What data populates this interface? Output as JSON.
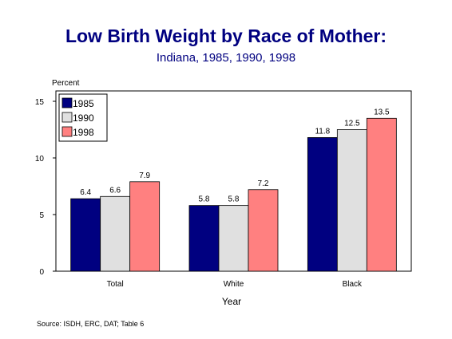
{
  "title": "Low Birth Weight by Race of Mother:",
  "subtitle": "Indiana, 1985, 1990, 1998",
  "source": "Source:  ISDH, ERC, DAT; Table 6",
  "chart_data": {
    "type": "bar",
    "title": "Low Birth Weight by Race of Mother:",
    "subtitle": "Indiana, 1985, 1990, 1998",
    "ylabel": "Percent",
    "xlabel": "Year",
    "ylim": [
      0,
      15
    ],
    "yticks": [
      0,
      5,
      10,
      15
    ],
    "categories": [
      "Total",
      "White",
      "Black"
    ],
    "series": [
      {
        "name": "1985",
        "color": "#000080",
        "values": [
          6.4,
          5.8,
          11.8
        ]
      },
      {
        "name": "1990",
        "color": "#e0e0e0",
        "values": [
          6.6,
          5.8,
          12.5
        ]
      },
      {
        "name": "1998",
        "color": "#ff8080",
        "values": [
          7.9,
          7.2,
          13.5
        ]
      }
    ],
    "legend_position": "top-left",
    "grid": false
  }
}
